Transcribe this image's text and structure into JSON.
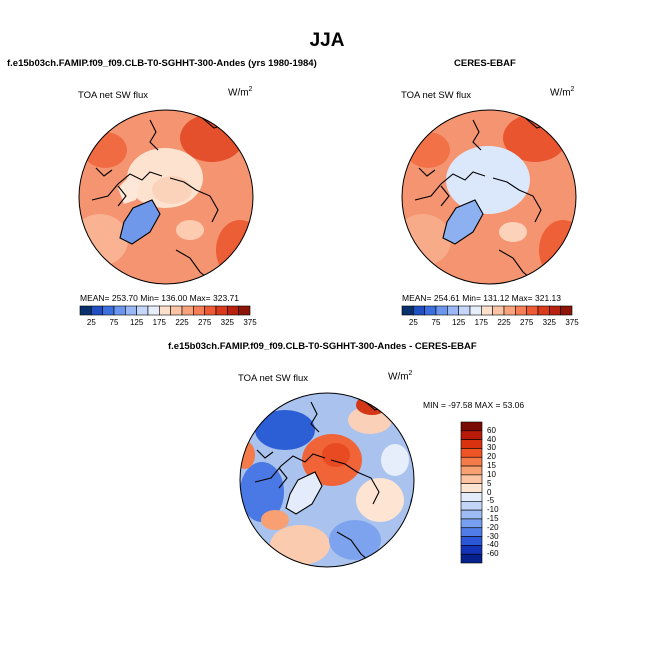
{
  "figure": {
    "title": "JJA"
  },
  "chart_data": [
    {
      "type": "heatmap",
      "projection": "north-polar-stereographic",
      "title": "f.e15b03ch.FAMIP.f09_f09.CLB-T0-SGHHT-300-Andes (yrs 1980-1984)",
      "variable": "TOA net SW flux",
      "units_base": "W/m",
      "units_exp": "2",
      "stats": "MEAN= 253.70   Min= 136.00   Max= 323.71",
      "colorbar": {
        "orientation": "horizontal",
        "labels": [
          "25",
          "75",
          "125",
          "175",
          "225",
          "275",
          "325",
          "375"
        ],
        "colors": [
          "#08306b",
          "#1f4fc0",
          "#3b6fe0",
          "#6b95ef",
          "#9ab8f5",
          "#c4d6fa",
          "#e6eefc",
          "#fde0cc",
          "#fcc4a4",
          "#f9a27c",
          "#f57f57",
          "#ee5a33",
          "#d93a1c",
          "#b8230f",
          "#8c1408"
        ]
      },
      "map_fill": "#f59470"
    },
    {
      "type": "heatmap",
      "projection": "north-polar-stereographic",
      "title": "CERES-EBAF",
      "variable": "TOA net SW flux",
      "units_base": "W/m",
      "units_exp": "2",
      "stats": "MEAN= 254.61   Min= 131.12   Max= 321.13",
      "colorbar": {
        "orientation": "horizontal",
        "labels": [
          "25",
          "75",
          "125",
          "175",
          "225",
          "275",
          "325",
          "375"
        ],
        "colors": [
          "#08306b",
          "#1f4fc0",
          "#3b6fe0",
          "#6b95ef",
          "#9ab8f5",
          "#c4d6fa",
          "#e6eefc",
          "#fde0cc",
          "#fcc4a4",
          "#f9a27c",
          "#f57f57",
          "#ee5a33",
          "#d93a1c",
          "#b8230f",
          "#8c1408"
        ]
      },
      "map_fill": "#f59470"
    },
    {
      "type": "heatmap",
      "projection": "north-polar-stereographic",
      "title": "f.e15b03ch.FAMIP.f09_f09.CLB-T0-SGHHT-300-Andes - CERES-EBAF",
      "variable": "TOA net SW flux",
      "units_base": "W/m",
      "units_exp": "2",
      "stats": "MIN = -97.58  MAX =  53.06",
      "colorbar": {
        "orientation": "vertical",
        "labels": [
          "60",
          "40",
          "30",
          "20",
          "15",
          "10",
          "5",
          "0",
          "-5",
          "-10",
          "-15",
          "-20",
          "-30",
          "-40",
          "-60"
        ],
        "colors": [
          "#7a0a04",
          "#b81a0a",
          "#d8320f",
          "#ee5424",
          "#f57b4a",
          "#f8a072",
          "#fbc3a2",
          "#fde4d3",
          "#e4ecfb",
          "#c2d5f7",
          "#9cbcf3",
          "#789ff0",
          "#4f7ce6",
          "#2b56d8",
          "#1434b8",
          "#06208c"
        ]
      },
      "map_fill": "#a9c2ee"
    }
  ]
}
